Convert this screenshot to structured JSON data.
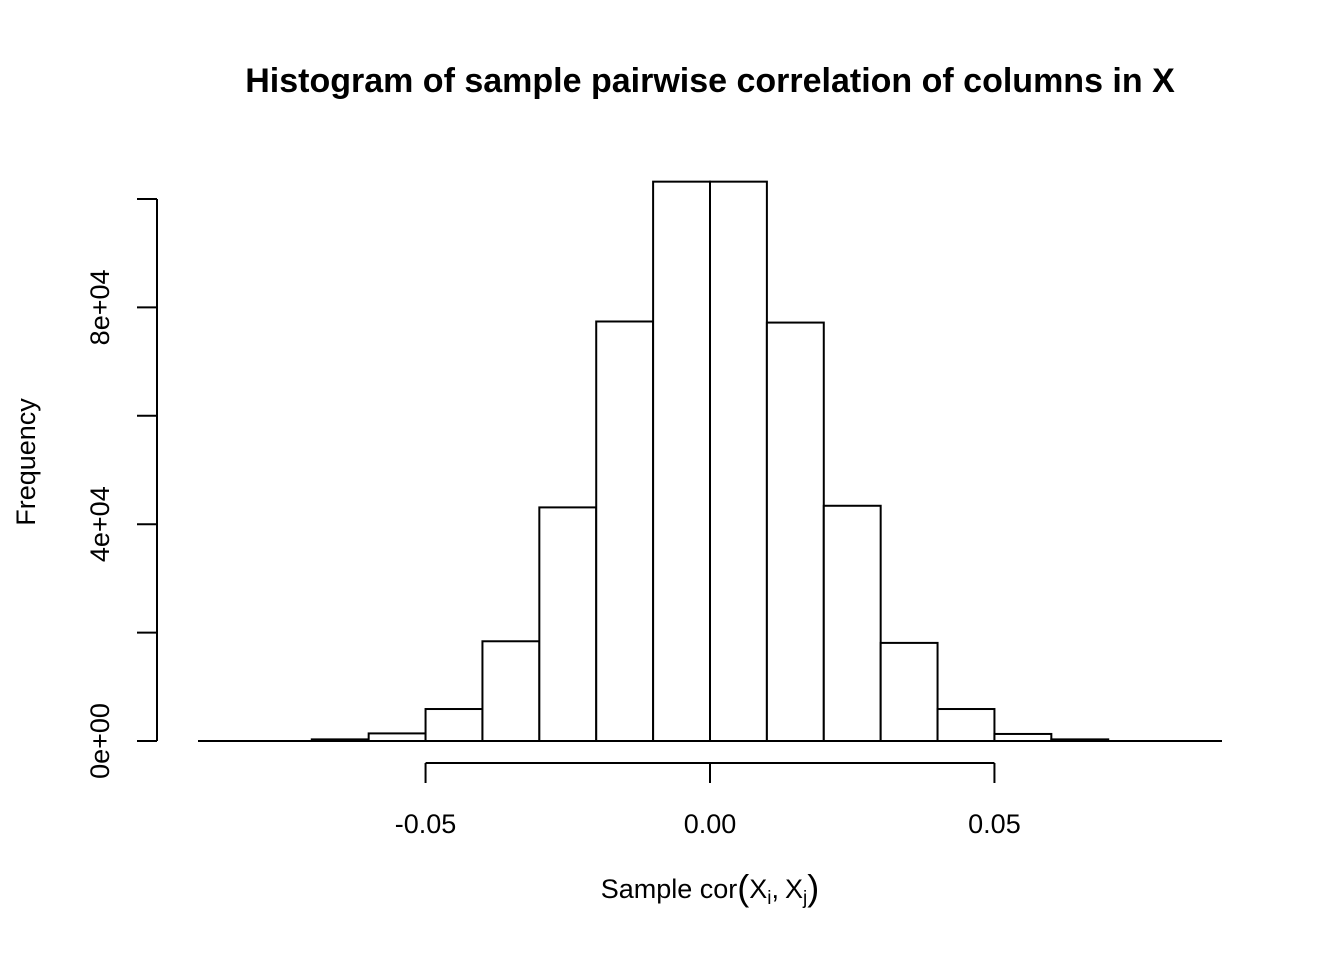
{
  "chart_data": {
    "type": "bar",
    "title": "Histogram of sample pairwise correlation of columns in X",
    "xlabel": {
      "prefix": "Sample cor",
      "x1": "X",
      "x1_sub": "i",
      "sep": ",",
      "x2": "X",
      "x2_sub": "j"
    },
    "ylabel": "Frequency",
    "bin_edges": [
      -0.09,
      -0.08,
      -0.07,
      -0.06,
      -0.05,
      -0.04,
      -0.03,
      -0.02,
      -0.01,
      0.0,
      0.01,
      0.02,
      0.03,
      0.04,
      0.05,
      0.06,
      0.07,
      0.08,
      0.09
    ],
    "values": [
      0,
      0,
      300,
      1400,
      5900,
      18400,
      43100,
      77400,
      103200,
      103200,
      77200,
      43400,
      18100,
      5900,
      1300,
      300,
      0,
      0
    ],
    "xlim": [
      -0.09,
      0.09
    ],
    "ylim": [
      0,
      100000
    ],
    "x_ticks": [
      -0.05,
      0.0,
      0.05
    ],
    "x_tick_labels": [
      "-0.05",
      "0.00",
      "0.05"
    ],
    "y_ticks": [
      0,
      20000,
      40000,
      60000,
      80000,
      100000
    ],
    "y_tick_labels": [
      "0e+00",
      "",
      "4e+04",
      "",
      "8e+04",
      ""
    ]
  }
}
